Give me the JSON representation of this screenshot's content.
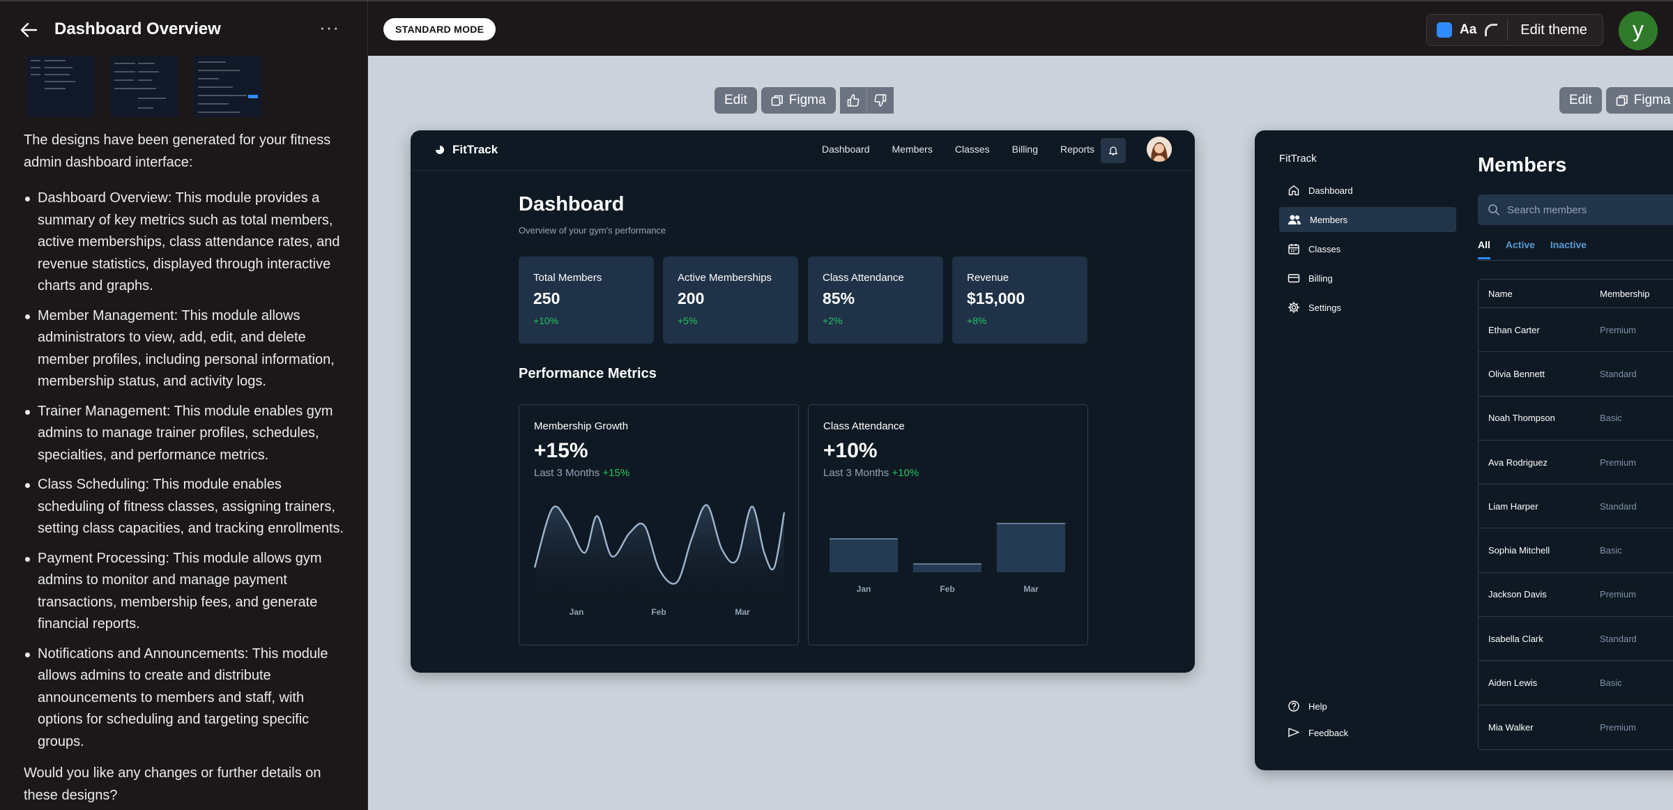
{
  "header": {
    "title": "Dashboard Overview",
    "more_label": "···",
    "mode_badge": "STANDARD MODE",
    "theme": {
      "aa_label": "Aa",
      "edit_label": "Edit theme",
      "swatch_color": "#2f8cff"
    },
    "user_initial": "y"
  },
  "chat": {
    "intro": "The designs have been generated for your fitness admin dashboard interface:",
    "bullets": [
      "Dashboard Overview: This module provides a summary of key metrics such as total members, active memberships, class attendance rates, and revenue statistics, displayed through interactive charts and graphs.",
      "Member Management: This module allows administrators to view, add, edit, and delete member profiles, including personal information, membership status, and activity logs.",
      "Trainer Management: This module enables gym admins to manage trainer profiles, schedules, specialties, and performance metrics.",
      "Class Scheduling: This module enables scheduling of fitness classes, assigning trainers, setting class capacities, and tracking enrollments.",
      "Payment Processing: This module allows gym admins to monitor and manage payment transactions, membership fees, and generate financial reports.",
      "Notifications and Announcements: This module allows admins to create and distribute announcements to members and staff, with options for scheduling and targeting specific groups."
    ],
    "outro": "Would you like any changes or further details on these designs?"
  },
  "toolbar": {
    "edit_label": "Edit",
    "figma_label": "Figma"
  },
  "dashboard": {
    "brand": "FitTrack",
    "nav": [
      "Dashboard",
      "Members",
      "Classes",
      "Billing",
      "Reports"
    ],
    "title": "Dashboard",
    "subtitle": "Overview of your gym's performance",
    "stats": [
      {
        "label": "Total Members",
        "value": "250",
        "change": "+10%"
      },
      {
        "label": "Active Memberships",
        "value": "200",
        "change": "+5%"
      },
      {
        "label": "Class Attendance",
        "value": "85%",
        "change": "+2%"
      },
      {
        "label": "Revenue",
        "value": "$15,000",
        "change": "+8%"
      }
    ],
    "section_title": "Performance Metrics",
    "growth_card": {
      "label": "Membership Growth",
      "value": "+15%",
      "period": "Last 3 Months",
      "change": "+15%"
    },
    "attendance_card": {
      "label": "Class Attendance",
      "value": "+10%",
      "period": "Last 3 Months",
      "change": "+10%"
    }
  },
  "chart_data": [
    {
      "type": "line",
      "title": "Membership Growth",
      "categories": [
        "Jan",
        "Feb",
        "Mar"
      ],
      "x": [
        0,
        0.07,
        0.13,
        0.2,
        0.25,
        0.31,
        0.38,
        0.44,
        0.5,
        0.57,
        0.63,
        0.69,
        0.75,
        0.81,
        0.87,
        0.92,
        0.96,
        1
      ],
      "series": [
        {
          "values": [
            0.15,
            0.95,
            0.78,
            0.35,
            0.85,
            0.3,
            0.62,
            0.72,
            0.12,
            -0.05,
            0.55,
            1.0,
            0.4,
            0.25,
            0.98,
            0.35,
            0.15,
            0.9
          ]
        }
      ],
      "ylim": [
        -0.2,
        1.1
      ],
      "grid": false,
      "legend": "none"
    },
    {
      "type": "bar",
      "title": "Class Attendance",
      "categories": [
        "Jan",
        "Feb",
        "Mar"
      ],
      "values": [
        48,
        12,
        70
      ],
      "ylim": [
        0,
        100
      ],
      "grid": false,
      "legend": "none"
    }
  ],
  "members": {
    "brand": "FitTrack",
    "sidebar": [
      "Dashboard",
      "Members",
      "Classes",
      "Billing",
      "Settings"
    ],
    "sidebar_bottom": [
      "Help",
      "Feedback"
    ],
    "title": "Members",
    "search_placeholder": "Search members",
    "tabs": [
      "All",
      "Active",
      "Inactive"
    ],
    "columns": [
      "Name",
      "Membership"
    ],
    "rows": [
      [
        "Ethan Carter",
        "Premium"
      ],
      [
        "Olivia Bennett",
        "Standard"
      ],
      [
        "Noah Thompson",
        "Basic"
      ],
      [
        "Ava Rodriguez",
        "Premium"
      ],
      [
        "Liam Harper",
        "Standard"
      ],
      [
        "Sophia Mitchell",
        "Basic"
      ],
      [
        "Jackson Davis",
        "Premium"
      ],
      [
        "Isabella Clark",
        "Standard"
      ],
      [
        "Aiden Lewis",
        "Basic"
      ],
      [
        "Mia Walker",
        "Premium"
      ]
    ]
  }
}
